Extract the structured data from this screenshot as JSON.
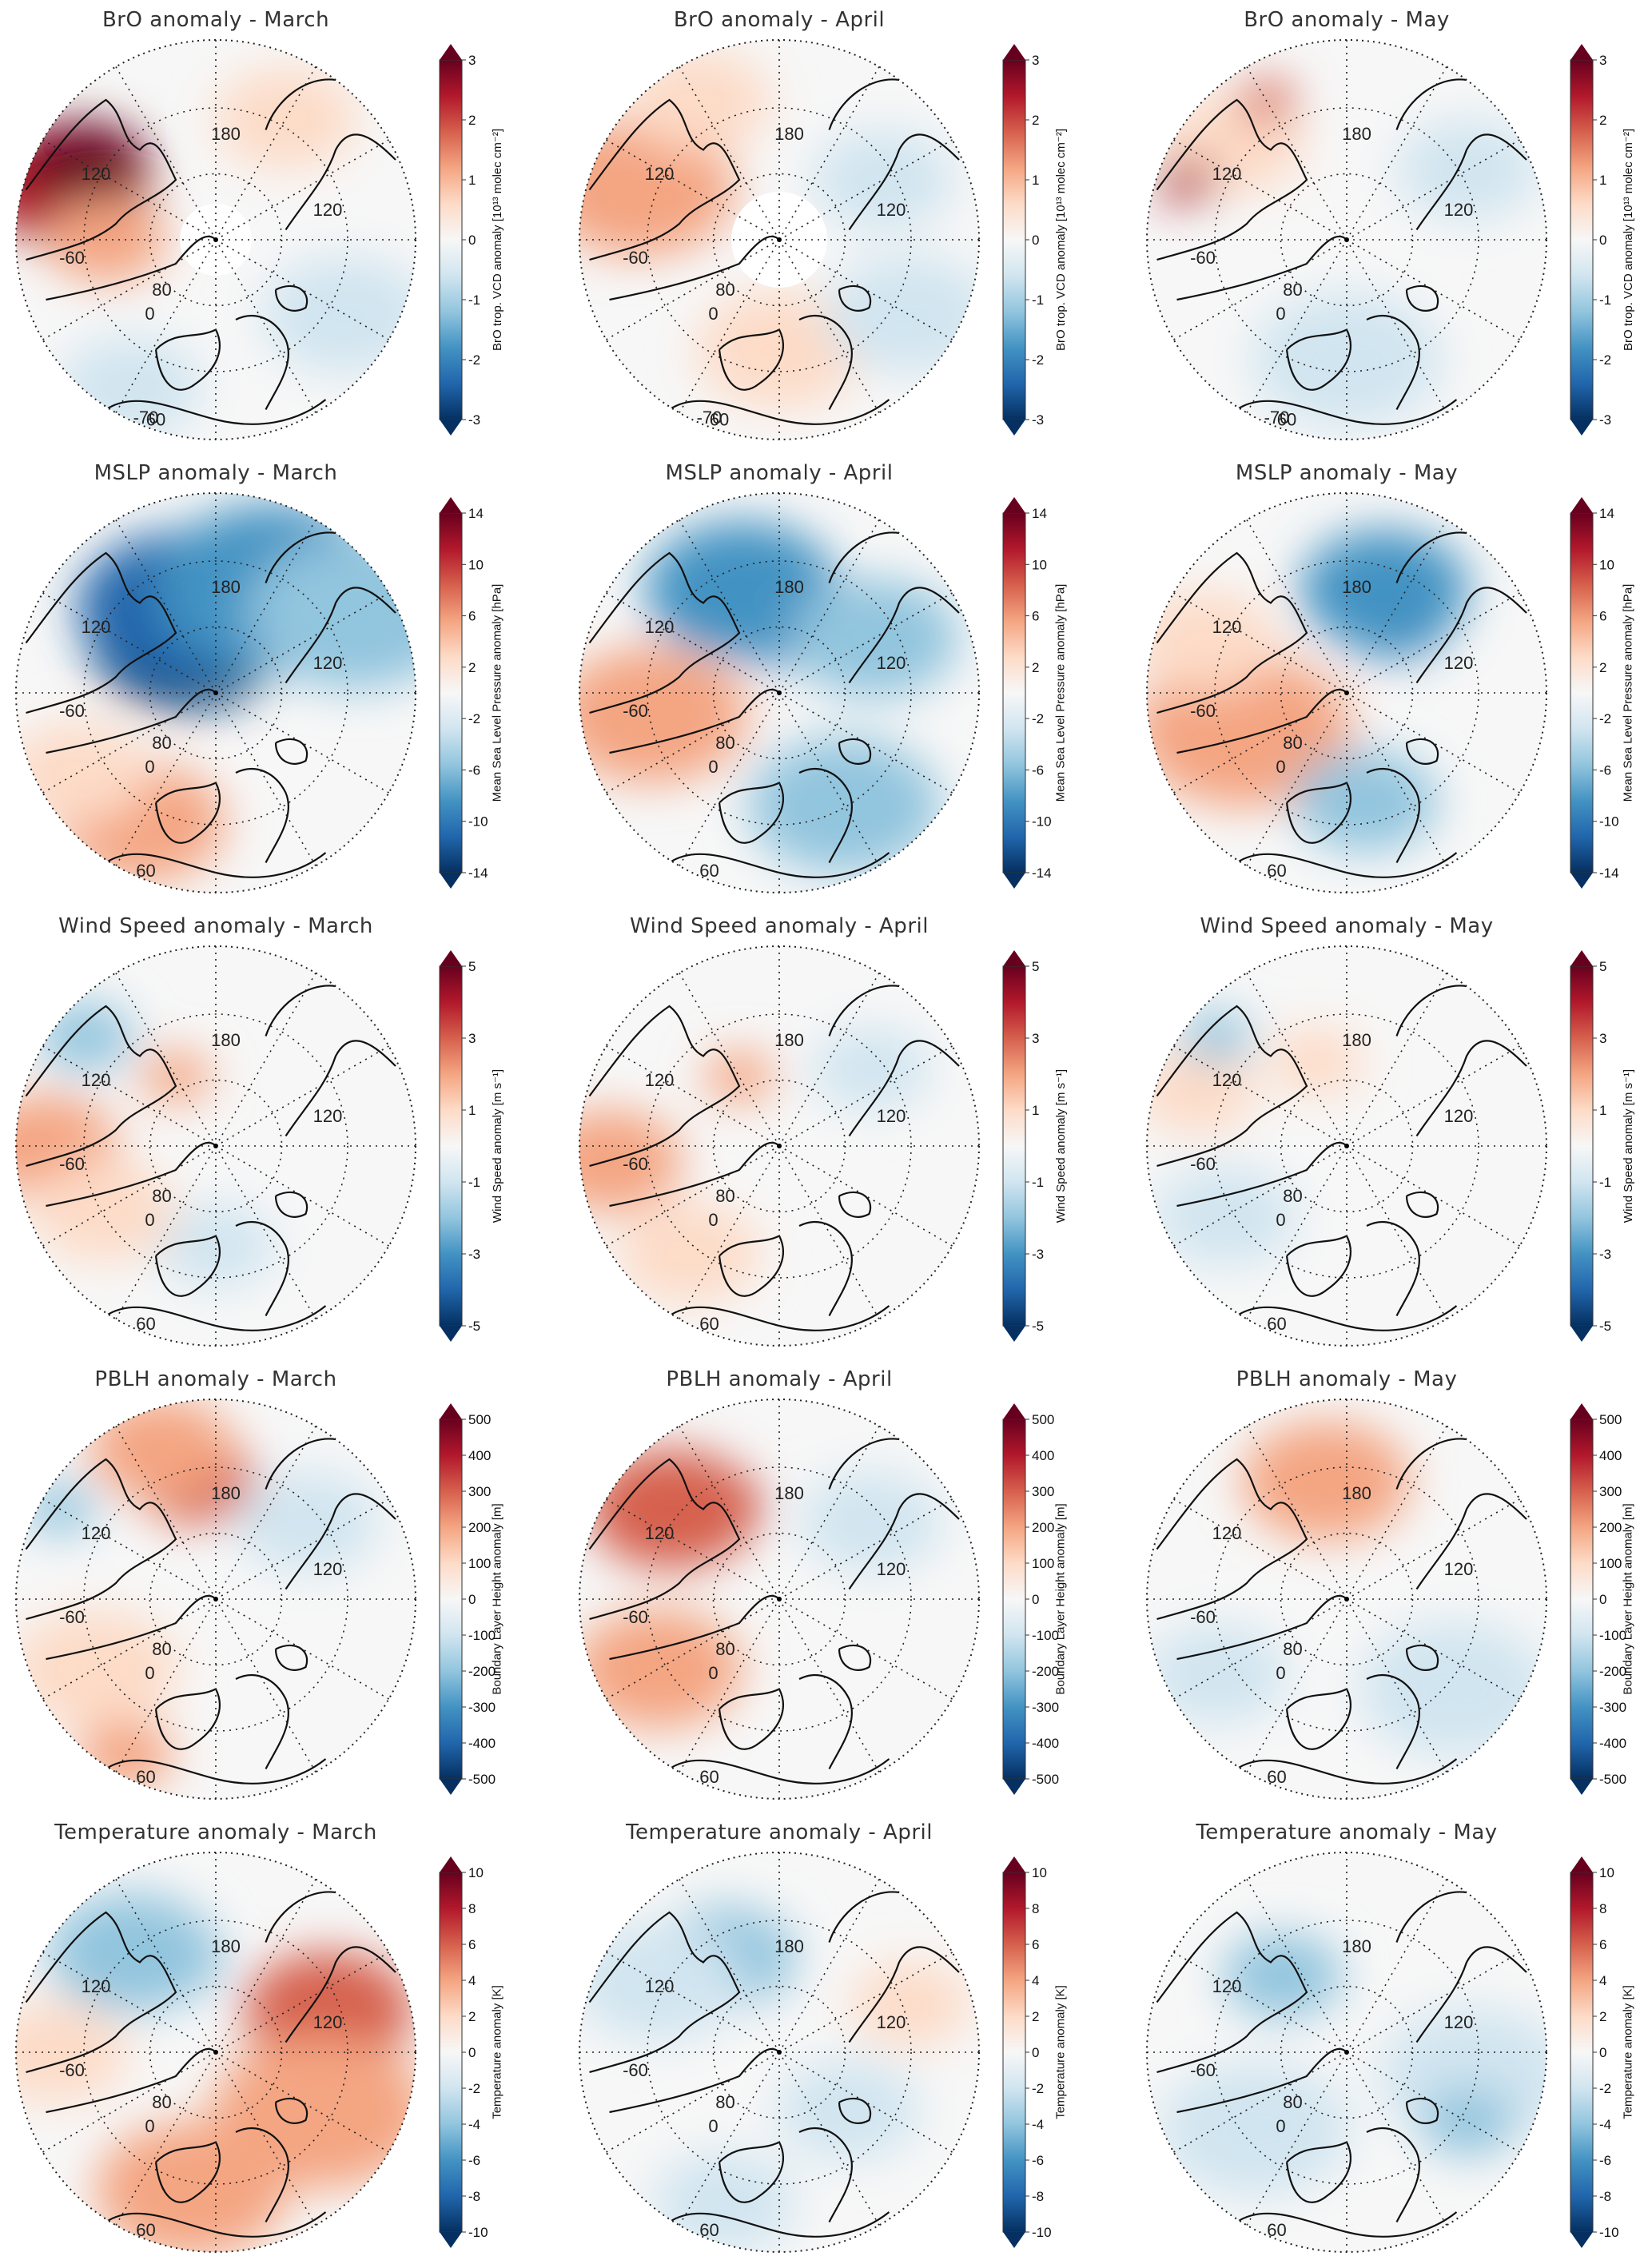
{
  "rows": [
    {
      "key": "bro",
      "colorbar": {
        "label": "BrO trop. VCD anomaly [10¹³ molec cm⁻²]",
        "ticks": [
          "3",
          "2",
          "1",
          "0",
          "-1",
          "-2",
          "-3"
        ]
      },
      "titles": [
        "BrO anomaly - March",
        "BrO anomaly - April",
        "BrO anomaly - May"
      ],
      "grid_labels": [
        "180",
        "120",
        "120",
        "-60",
        "80",
        "0",
        "-70",
        "60"
      ],
      "variant": "bro"
    },
    {
      "key": "mslp",
      "colorbar": {
        "label": "Mean Sea Level Pressure anomaly [hPa]",
        "ticks": [
          "14",
          "10",
          "6",
          "2",
          "-2",
          "-6",
          "-10",
          "-14"
        ]
      },
      "titles": [
        "MSLP anomaly - March",
        "MSLP anomaly - April",
        "MSLP anomaly - May"
      ],
      "grid_labels": [
        "180",
        "120",
        "120",
        "-60",
        "80",
        "0",
        "60"
      ],
      "variant": "field"
    },
    {
      "key": "wind",
      "colorbar": {
        "label": "Wind Speed anomaly [m s⁻¹]",
        "ticks": [
          "5",
          "3",
          "1",
          "-1",
          "-3",
          "-5"
        ]
      },
      "titles": [
        "Wind Speed anomaly - March",
        "Wind Speed anomaly - April",
        "Wind Speed anomaly - May"
      ],
      "grid_labels": [
        "180",
        "120",
        "120",
        "-60",
        "80",
        "0",
        "60"
      ],
      "variant": "field"
    },
    {
      "key": "pblh",
      "colorbar": {
        "label": "Boundary Layer Height anomaly [m]",
        "ticks": [
          "500",
          "400",
          "300",
          "200",
          "100",
          "0",
          "-100",
          "-200",
          "-300",
          "-400",
          "-500"
        ]
      },
      "titles": [
        "PBLH anomaly - March",
        "PBLH anomaly - April",
        "PBLH anomaly - May"
      ],
      "grid_labels": [
        "180",
        "120",
        "120",
        "-60",
        "80",
        "0",
        "60"
      ],
      "variant": "field"
    },
    {
      "key": "temp",
      "colorbar": {
        "label": "Temperature anomaly [K]",
        "ticks": [
          "10",
          "8",
          "6",
          "4",
          "2",
          "0",
          "-2",
          "-4",
          "-6",
          "-8",
          "-10"
        ]
      },
      "titles": [
        "Temperature anomaly - March",
        "Temperature anomaly - April",
        "Temperature anomaly - May"
      ],
      "grid_labels": [
        "180",
        "120",
        "120",
        "-60",
        "80",
        "0",
        "60"
      ],
      "variant": "field"
    }
  ],
  "colors": {
    "max": "#67001f",
    "strong_pos": "#b2182b",
    "pos": "#d6604d",
    "weak_pos": "#f4a582",
    "faint_pos": "#fddbc7",
    "neutral": "#f7f7f7",
    "faint_neg": "#d1e5f0",
    "weak_neg": "#92c5de",
    "neg": "#4393c3",
    "strong_neg": "#2166ac",
    "min": "#053061",
    "coast": "#111111",
    "grid": "#222222"
  },
  "blobs": {
    "bro": [
      [
        {
          "a": 200,
          "r": 0.8,
          "s": 0.35,
          "c": "strong_pos"
        },
        {
          "a": 210,
          "r": 0.75,
          "s": 0.25,
          "c": "max"
        },
        {
          "a": 180,
          "r": 0.55,
          "s": 0.25,
          "c": "weak_pos"
        },
        {
          "a": 120,
          "r": 0.85,
          "s": 0.3,
          "c": "faint_neg"
        },
        {
          "a": 30,
          "r": 0.75,
          "s": 0.35,
          "c": "faint_neg"
        },
        {
          "a": 300,
          "r": 0.7,
          "s": 0.3,
          "c": "faint_pos"
        }
      ],
      [
        {
          "a": 200,
          "r": 0.75,
          "s": 0.4,
          "c": "weak_pos"
        },
        {
          "a": 240,
          "r": 0.8,
          "s": 0.3,
          "c": "faint_pos"
        },
        {
          "a": 90,
          "r": 0.55,
          "s": 0.35,
          "c": "faint_pos"
        },
        {
          "a": 330,
          "r": 0.6,
          "s": 0.3,
          "c": "faint_neg"
        },
        {
          "a": 30,
          "r": 0.75,
          "s": 0.35,
          "c": "faint_neg"
        }
      ],
      [
        {
          "a": 90,
          "r": 0.6,
          "s": 0.4,
          "c": "faint_neg"
        },
        {
          "a": 330,
          "r": 0.7,
          "s": 0.3,
          "c": "faint_neg"
        },
        {
          "a": 220,
          "r": 0.75,
          "s": 0.3,
          "c": "faint_pos"
        },
        {
          "a": 200,
          "r": 0.85,
          "s": 0.12,
          "c": "strong_pos"
        },
        {
          "a": 240,
          "r": 0.8,
          "s": 0.12,
          "c": "pos"
        }
      ]
    ],
    "mslp": [
      [
        {
          "a": 240,
          "r": 0.3,
          "s": 0.4,
          "c": "min"
        },
        {
          "a": 250,
          "r": 0.45,
          "s": 0.45,
          "c": "strong_neg"
        },
        {
          "a": 300,
          "r": 0.6,
          "s": 0.5,
          "c": "neg"
        },
        {
          "a": 330,
          "r": 0.8,
          "s": 0.45,
          "c": "weak_neg"
        },
        {
          "a": 120,
          "r": 0.75,
          "s": 0.35,
          "c": "weak_pos"
        },
        {
          "a": 150,
          "r": 0.8,
          "s": 0.3,
          "c": "faint_pos"
        }
      ],
      [
        {
          "a": 270,
          "r": 0.4,
          "s": 0.3,
          "c": "strong_neg"
        },
        {
          "a": 250,
          "r": 0.55,
          "s": 0.4,
          "c": "neg"
        },
        {
          "a": 170,
          "r": 0.65,
          "s": 0.4,
          "c": "weak_pos"
        },
        {
          "a": 60,
          "r": 0.65,
          "s": 0.4,
          "c": "weak_neg"
        },
        {
          "a": 330,
          "r": 0.55,
          "s": 0.35,
          "c": "weak_neg"
        }
      ],
      [
        {
          "a": 300,
          "r": 0.45,
          "s": 0.25,
          "c": "strong_neg"
        },
        {
          "a": 290,
          "r": 0.55,
          "s": 0.35,
          "c": "neg"
        },
        {
          "a": 160,
          "r": 0.55,
          "s": 0.45,
          "c": "weak_pos"
        },
        {
          "a": 200,
          "r": 0.75,
          "s": 0.3,
          "c": "faint_pos"
        },
        {
          "a": 80,
          "r": 0.55,
          "s": 0.3,
          "c": "weak_neg"
        }
      ]
    ],
    "wind": [
      [
        {
          "a": 180,
          "r": 0.85,
          "s": 0.3,
          "c": "weak_pos"
        },
        {
          "a": 220,
          "r": 0.85,
          "s": 0.2,
          "c": "weak_neg"
        },
        {
          "a": 240,
          "r": 0.4,
          "s": 0.15,
          "c": "weak_pos"
        },
        {
          "a": 90,
          "r": 0.5,
          "s": 0.25,
          "c": "faint_neg"
        },
        {
          "a": 150,
          "r": 0.65,
          "s": 0.3,
          "c": "faint_pos"
        }
      ],
      [
        {
          "a": 175,
          "r": 0.85,
          "s": 0.3,
          "c": "weak_pos"
        },
        {
          "a": 130,
          "r": 0.7,
          "s": 0.3,
          "c": "faint_pos"
        },
        {
          "a": 240,
          "r": 0.4,
          "s": 0.15,
          "c": "weak_pos"
        },
        {
          "a": 320,
          "r": 0.6,
          "s": 0.25,
          "c": "faint_neg"
        }
      ],
      [
        {
          "a": 200,
          "r": 0.8,
          "s": 0.25,
          "c": "faint_pos"
        },
        {
          "a": 150,
          "r": 0.7,
          "s": 0.3,
          "c": "faint_neg"
        },
        {
          "a": 250,
          "r": 0.45,
          "s": 0.2,
          "c": "faint_pos"
        },
        {
          "a": 220,
          "r": 0.85,
          "s": 0.15,
          "c": "weak_neg"
        }
      ]
    ],
    "pblh": [
      [
        {
          "a": 260,
          "r": 0.6,
          "s": 0.25,
          "c": "pos"
        },
        {
          "a": 250,
          "r": 0.8,
          "s": 0.3,
          "c": "weak_pos"
        },
        {
          "a": 150,
          "r": 0.7,
          "s": 0.35,
          "c": "faint_pos"
        },
        {
          "a": 120,
          "r": 0.9,
          "s": 0.2,
          "c": "weak_pos"
        },
        {
          "a": 320,
          "r": 0.6,
          "s": 0.3,
          "c": "faint_neg"
        },
        {
          "a": 210,
          "r": 0.9,
          "s": 0.15,
          "c": "weak_neg"
        }
      ],
      [
        {
          "a": 230,
          "r": 0.6,
          "s": 0.25,
          "c": "strong_pos"
        },
        {
          "a": 220,
          "r": 0.7,
          "s": 0.35,
          "c": "pos"
        },
        {
          "a": 150,
          "r": 0.7,
          "s": 0.35,
          "c": "weak_pos"
        },
        {
          "a": 320,
          "r": 0.6,
          "s": 0.3,
          "c": "faint_neg"
        }
      ],
      [
        {
          "a": 260,
          "r": 0.55,
          "s": 0.2,
          "c": "strong_pos"
        },
        {
          "a": 260,
          "r": 0.6,
          "s": 0.35,
          "c": "weak_pos"
        },
        {
          "a": 40,
          "r": 0.7,
          "s": 0.4,
          "c": "faint_neg"
        },
        {
          "a": 150,
          "r": 0.75,
          "s": 0.3,
          "c": "faint_neg"
        }
      ]
    ],
    "temp": [
      [
        {
          "a": 340,
          "r": 0.6,
          "s": 0.35,
          "c": "pos"
        },
        {
          "a": 30,
          "r": 0.6,
          "s": 0.45,
          "c": "weak_pos"
        },
        {
          "a": 100,
          "r": 0.7,
          "s": 0.4,
          "c": "weak_pos"
        },
        {
          "a": 240,
          "r": 0.55,
          "s": 0.25,
          "c": "neg"
        },
        {
          "a": 230,
          "r": 0.65,
          "s": 0.35,
          "c": "weak_neg"
        },
        {
          "a": 180,
          "r": 0.8,
          "s": 0.3,
          "c": "faint_pos"
        }
      ],
      [
        {
          "a": 240,
          "r": 0.55,
          "s": 0.3,
          "c": "weak_neg"
        },
        {
          "a": 210,
          "r": 0.7,
          "s": 0.35,
          "c": "faint_neg"
        },
        {
          "a": 110,
          "r": 0.8,
          "s": 0.3,
          "c": "faint_neg"
        },
        {
          "a": 340,
          "r": 0.7,
          "s": 0.25,
          "c": "faint_pos"
        },
        {
          "a": 40,
          "r": 0.45,
          "s": 0.3,
          "c": "faint_neg"
        }
      ],
      [
        {
          "a": 230,
          "r": 0.5,
          "s": 0.25,
          "c": "weak_neg"
        },
        {
          "a": 10,
          "r": 0.65,
          "s": 0.4,
          "c": "faint_neg"
        },
        {
          "a": 30,
          "r": 0.7,
          "s": 0.2,
          "c": "weak_neg"
        },
        {
          "a": 140,
          "r": 0.6,
          "s": 0.4,
          "c": "faint_neg"
        }
      ]
    ]
  }
}
